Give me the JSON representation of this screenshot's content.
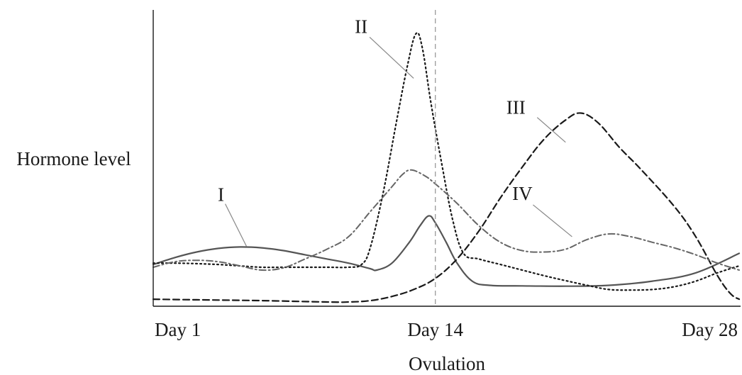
{
  "chart_data": {
    "type": "line",
    "title": "",
    "ylabel": "Hormone level",
    "xlabel": "Ovulation",
    "xlim": [
      1,
      28
    ],
    "ylim": [
      0,
      100
    ],
    "x_ticks": [
      {
        "value": 1,
        "label": "Day 1"
      },
      {
        "value": 14,
        "label": "Day 14"
      },
      {
        "value": 28,
        "label": "Day 28"
      }
    ],
    "ovulation_day": 14,
    "grid": false,
    "series": [
      {
        "name": "I",
        "style": "solid",
        "color": "#555555",
        "label_anchor": {
          "x": 5.3,
          "y": 20.5
        },
        "points": [
          [
            1,
            14
          ],
          [
            2,
            16.5
          ],
          [
            3,
            18.5
          ],
          [
            4,
            19.8
          ],
          [
            5,
            20.3
          ],
          [
            6,
            20
          ],
          [
            7,
            19
          ],
          [
            8,
            17.5
          ],
          [
            9,
            16
          ],
          [
            10,
            14.5
          ],
          [
            11,
            12.5
          ],
          [
            11.3,
            12
          ],
          [
            12,
            14.5
          ],
          [
            12.8,
            22
          ],
          [
            13.3,
            28
          ],
          [
            13.7,
            31.5
          ],
          [
            14,
            29
          ],
          [
            14.5,
            22
          ],
          [
            15,
            14.5
          ],
          [
            15.7,
            8
          ],
          [
            16.5,
            6.5
          ],
          [
            18,
            6.3
          ],
          [
            20,
            6.2
          ],
          [
            22,
            6.5
          ],
          [
            24,
            8
          ],
          [
            26,
            11
          ],
          [
            28,
            18
          ]
        ]
      },
      {
        "name": "II",
        "style": "dotted",
        "color": "#1a1a1a",
        "label_anchor": {
          "x": 13.0,
          "y": 81
        },
        "points": [
          [
            1,
            14.5
          ],
          [
            2,
            14.5
          ],
          [
            3,
            14.3
          ],
          [
            4,
            14
          ],
          [
            5,
            13.5
          ],
          [
            6,
            13
          ],
          [
            7,
            13
          ],
          [
            8,
            13
          ],
          [
            9,
            13
          ],
          [
            10,
            13
          ],
          [
            10.6,
            14
          ],
          [
            11,
            20
          ],
          [
            11.6,
            40
          ],
          [
            12.2,
            65
          ],
          [
            12.7,
            85
          ],
          [
            13.1,
            97
          ],
          [
            13.4,
            92
          ],
          [
            13.8,
            72
          ],
          [
            14.3,
            50
          ],
          [
            14.8,
            30
          ],
          [
            15.3,
            18
          ],
          [
            16,
            16
          ],
          [
            17,
            14
          ],
          [
            18,
            12
          ],
          [
            19,
            10
          ],
          [
            20,
            8.2
          ],
          [
            21,
            6.5
          ],
          [
            22,
            5
          ],
          [
            23,
            4.8
          ],
          [
            24,
            5
          ],
          [
            25,
            6
          ],
          [
            26,
            8
          ],
          [
            27,
            11
          ],
          [
            28,
            13.5
          ]
        ]
      },
      {
        "name": "III",
        "style": "dashed",
        "color": "#1a1a1a",
        "label_anchor": {
          "x": 20.0,
          "y": 58
        },
        "points": [
          [
            1,
            1.5
          ],
          [
            3,
            1.3
          ],
          [
            6,
            1
          ],
          [
            9,
            0.5
          ],
          [
            10,
            0.5
          ],
          [
            11,
            1
          ],
          [
            12,
            2.5
          ],
          [
            13,
            5
          ],
          [
            14,
            9
          ],
          [
            15,
            16
          ],
          [
            16,
            26
          ],
          [
            17,
            38
          ],
          [
            18,
            49
          ],
          [
            19,
            59
          ],
          [
            20,
            66
          ],
          [
            20.7,
            68.5
          ],
          [
            21.5,
            65
          ],
          [
            22.5,
            56
          ],
          [
            23.5,
            48
          ],
          [
            25,
            35
          ],
          [
            26,
            24
          ],
          [
            27,
            10
          ],
          [
            27.6,
            3.5
          ],
          [
            28,
            1.5
          ]
        ]
      },
      {
        "name": "IV",
        "style": "dashdot",
        "color": "#666666",
        "label_anchor": {
          "x": 20.3,
          "y": 24
        },
        "points": [
          [
            1,
            13
          ],
          [
            2,
            15
          ],
          [
            3,
            15.5
          ],
          [
            4,
            15
          ],
          [
            5,
            13.5
          ],
          [
            6,
            12
          ],
          [
            7,
            12.8
          ],
          [
            8,
            16
          ],
          [
            9,
            19.5
          ],
          [
            10,
            24
          ],
          [
            11,
            33
          ],
          [
            12,
            42
          ],
          [
            12.5,
            46.5
          ],
          [
            12.9,
            48
          ],
          [
            13.5,
            46
          ],
          [
            14,
            43
          ],
          [
            15,
            36
          ],
          [
            16,
            28
          ],
          [
            17,
            22
          ],
          [
            18,
            19
          ],
          [
            19,
            18.5
          ],
          [
            20,
            19.5
          ],
          [
            21,
            23
          ],
          [
            22,
            25
          ],
          [
            23,
            24
          ],
          [
            24,
            22
          ],
          [
            25,
            20
          ],
          [
            26,
            17.5
          ],
          [
            27,
            14.5
          ],
          [
            28,
            12
          ]
        ]
      }
    ]
  }
}
